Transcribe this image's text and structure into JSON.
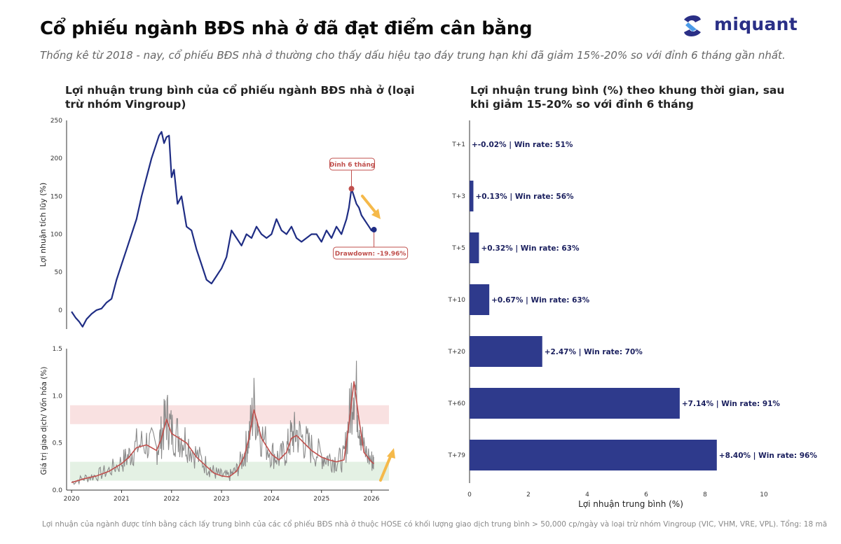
{
  "header": {
    "title": "Cổ phiếu ngành BĐS nhà ở đã đạt điểm cân bằng",
    "subtitle": "Thống kê từ 2018 - nay, cổ phiếu BĐS nhà ở thường cho thấy dấu hiệu tạo đáy trung hạn khi đã giảm 15%-20% so với đỉnh 6 tháng gần nhất.",
    "logo_text": "miquant"
  },
  "colors": {
    "navy": "#1f2d84",
    "bar": "#2e3a8c",
    "red": "#c0504d",
    "gray": "#8a8a8a",
    "arrow": "#f5b94a",
    "band_red": "#f9e1e1",
    "band_green": "#e4f1e4"
  },
  "chart_data": [
    {
      "type": "line",
      "title": "Lợi nhuận trung bình của cổ phiếu ngành BĐS nhà ở (loại trừ nhóm Vingroup)",
      "ylabel": "Lợi nhuận tích lũy (%)",
      "ylim": [
        -25,
        250
      ],
      "yticks": [
        "0",
        "50",
        "100",
        "150",
        "200",
        "250"
      ],
      "xlim": [
        2019.9,
        2026.35
      ],
      "series": [
        {
          "x": [
            2020.0,
            2020.08,
            2020.15,
            2020.22,
            2020.3,
            2020.4,
            2020.5,
            2020.6,
            2020.7,
            2020.8,
            2020.9,
            2021.0,
            2021.1,
            2021.2,
            2021.3,
            2021.4,
            2021.5,
            2021.6,
            2021.7,
            2021.75,
            2021.8,
            2021.85,
            2021.9,
            2021.95,
            2022.0,
            2022.05,
            2022.12,
            2022.2,
            2022.3,
            2022.4,
            2022.5,
            2022.6,
            2022.7,
            2022.8,
            2022.9,
            2022.95,
            2023.0,
            2023.1,
            2023.2,
            2023.3,
            2023.4,
            2023.5,
            2023.6,
            2023.7,
            2023.8,
            2023.9,
            2024.0,
            2024.1,
            2024.2,
            2024.3,
            2024.4,
            2024.5,
            2024.6,
            2024.7,
            2024.8,
            2024.9,
            2025.0,
            2025.1,
            2025.2,
            2025.3,
            2025.4,
            2025.45,
            2025.5,
            2025.55,
            2025.6,
            2025.65,
            2025.7,
            2025.75,
            2025.8,
            2025.85,
            2025.9,
            2025.95,
            2026.0,
            2026.05
          ],
          "values": [
            -2,
            -10,
            -15,
            -22,
            -12,
            -5,
            0,
            2,
            10,
            15,
            40,
            60,
            80,
            100,
            120,
            150,
            175,
            200,
            220,
            230,
            235,
            220,
            228,
            230,
            175,
            185,
            140,
            150,
            110,
            105,
            80,
            60,
            40,
            35,
            45,
            50,
            55,
            70,
            105,
            95,
            85,
            100,
            95,
            110,
            100,
            95,
            100,
            120,
            105,
            100,
            110,
            95,
            90,
            95,
            100,
            100,
            90,
            105,
            95,
            110,
            100,
            110,
            120,
            135,
            160,
            150,
            140,
            135,
            125,
            120,
            115,
            110,
            105,
            106
          ]
        }
      ],
      "annotations": [
        "Đỉnh 6 tháng",
        "Drawdown: -19.96%"
      ]
    },
    {
      "type": "line",
      "ylabel": "Giá trị giao dịch/ Vốn hóa (%)",
      "ylim": [
        0,
        1.5
      ],
      "yticks": [
        "0.0",
        "0.5",
        "1.0",
        "1.5"
      ],
      "xlim": [
        2019.9,
        2026.35
      ],
      "xticks": [
        "2020",
        "2021",
        "2022",
        "2023",
        "2024",
        "2025",
        "2026"
      ],
      "bands": [
        {
          "from": 0.7,
          "to": 0.9
        },
        {
          "from": 0.1,
          "to": 0.3
        }
      ],
      "series": [
        {
          "x": [
            2020.0,
            2020.25,
            2020.5,
            2020.75,
            2021.0,
            2021.15,
            2021.3,
            2021.5,
            2021.7,
            2021.8,
            2021.9,
            2022.0,
            2022.15,
            2022.3,
            2022.5,
            2022.7,
            2022.85,
            2023.0,
            2023.15,
            2023.3,
            2023.45,
            2023.55,
            2023.65,
            2023.8,
            2024.0,
            2024.15,
            2024.3,
            2024.4,
            2024.5,
            2024.65,
            2024.8,
            2025.0,
            2025.15,
            2025.3,
            2025.45,
            2025.55,
            2025.65,
            2025.75,
            2025.85,
            2026.0,
            2026.05
          ],
          "values": [
            0.08,
            0.12,
            0.15,
            0.2,
            0.28,
            0.35,
            0.45,
            0.48,
            0.42,
            0.55,
            0.75,
            0.6,
            0.55,
            0.5,
            0.35,
            0.25,
            0.18,
            0.15,
            0.14,
            0.2,
            0.35,
            0.55,
            0.85,
            0.55,
            0.38,
            0.32,
            0.4,
            0.55,
            0.58,
            0.5,
            0.42,
            0.35,
            0.32,
            0.3,
            0.32,
            0.7,
            1.15,
            0.75,
            0.4,
            0.3,
            0.28
          ]
        }
      ]
    },
    {
      "type": "bar",
      "orientation": "horizontal",
      "title": "Lợi nhuận trung bình (%) theo khung thời gian, sau khi giảm 15-20% so với đỉnh 6 tháng",
      "xlabel": "Lợi nhuận trung bình (%)",
      "xlim": [
        0,
        10
      ],
      "xticks": [
        "0",
        "2",
        "4",
        "6",
        "8",
        "10"
      ],
      "categories": [
        "T+1",
        "T+3",
        "T+5",
        "T+10",
        "T+20",
        "T+60",
        "T+79"
      ],
      "values": [
        -0.02,
        0.13,
        0.32,
        0.67,
        2.47,
        7.14,
        8.4
      ],
      "labels": [
        "+-0.02% | Win rate: 51%",
        "+0.13% | Win rate: 56%",
        "+0.32% | Win rate: 63%",
        "+0.67% | Win rate: 63%",
        "+2.47% | Win rate: 70%",
        "+7.14% | Win rate: 91%",
        "+8.40% | Win rate: 96%"
      ]
    }
  ],
  "footnote": "Lợi nhuận của ngành được tính bằng cách lấy trung bình của các cổ phiếu BĐS nhà ở thuộc HOSE có khối lượng giao dịch trung bình > 50,000 cp/ngày và loại trừ nhóm Vingroup (VIC, VHM, VRE, VPL). Tổng: 18 mã"
}
